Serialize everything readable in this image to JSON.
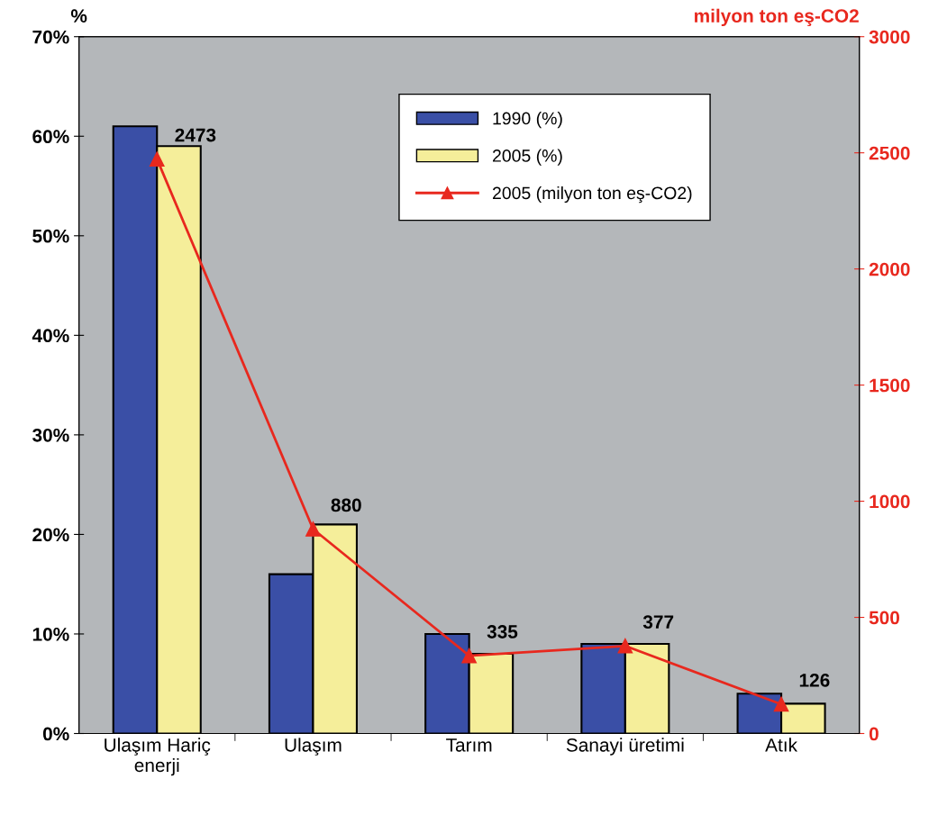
{
  "chart_data": {
    "type": "bar",
    "ylabel": "%",
    "y2label": "milyon ton eş-CO2",
    "categories": [
      "Ulaşım Hariç\nenerji",
      "Ulaşım",
      "Tarım",
      "Sanayi üretimi",
      "Atık"
    ],
    "series": [
      {
        "name": "1990 (%)",
        "color": "#3a4fa6",
        "values": [
          61,
          16,
          10,
          9,
          4
        ]
      },
      {
        "name": "2005 (%)",
        "color": "#f5ee9a",
        "values": [
          59,
          21,
          8,
          9,
          3
        ]
      },
      {
        "name": "2005 (milyon ton eş-CO2)",
        "type": "line",
        "axis": "y2",
        "color": "#e8281e",
        "marker": "triangle",
        "values": [
          2473,
          880,
          335,
          377,
          126
        ],
        "value_labels": [
          "2473",
          "880",
          "335",
          "377",
          "126"
        ]
      }
    ],
    "ylim": [
      0,
      70
    ],
    "yticks": [
      {
        "value": 0,
        "label": "0%"
      },
      {
        "value": 10,
        "label": "10%"
      },
      {
        "value": 20,
        "label": "20%"
      },
      {
        "value": 30,
        "label": "30%"
      },
      {
        "value": 40,
        "label": "40%"
      },
      {
        "value": 50,
        "label": "50%"
      },
      {
        "value": 60,
        "label": "60%"
      },
      {
        "value": 70,
        "label": "70%"
      }
    ],
    "y2lim": [
      0,
      3000
    ],
    "y2ticks": [
      0,
      500,
      1000,
      1500,
      2000,
      2500,
      3000
    ],
    "grid": false,
    "legend": "top right"
  }
}
